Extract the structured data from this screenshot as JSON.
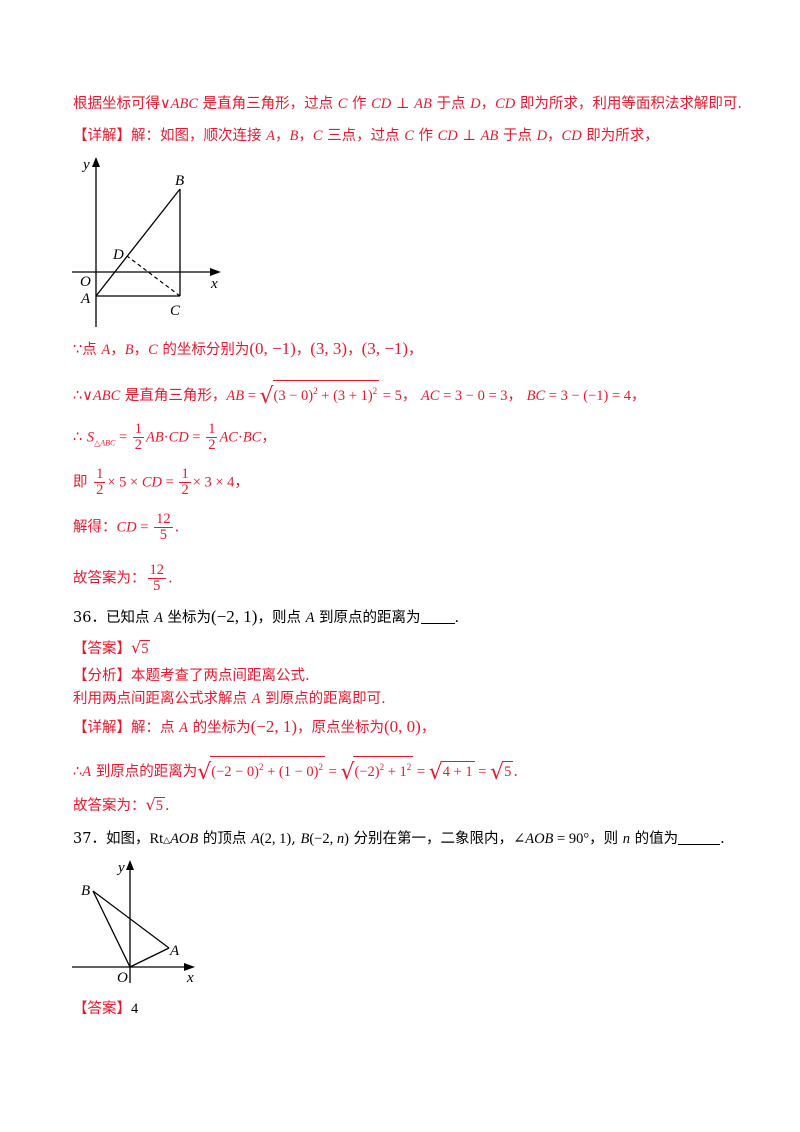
{
  "intro": {
    "hint_text": "根据坐标可得∨ABC是直角三角形，过点C作CD⊥AB于点D，CD即为所求，利用等面积法求解即可.",
    "detail_tag": "【详解】",
    "detail_text": "解：如图，顺次连接A，B，C三点，过点C作CD⊥AB于点D，CD即为所求，"
  },
  "figure1": {
    "labels": {
      "y": "y",
      "x": "x",
      "o": "O",
      "a": "A",
      "b": "B",
      "c": "C",
      "d": "D"
    }
  },
  "solution35": {
    "coords": "∵点A，B，C的坐标分别为(0,−1)，(3,3)，(3,−1)，",
    "right_triangle": "∴∨ABC是直角三角形，",
    "ab_eq": "AB = √((3−0)² + (3+1)²) = 5，",
    "ac_eq": "AC = 3 − 0 = 3，",
    "bc_eq": "BC = 3 − (−1) = 4，",
    "area_eq": "∴ S△ABC = ½AB·CD = ½AC·BC，",
    "that_is": "即 ½×5×CD = ½×3×4，",
    "solve": "解得：CD = 12/5.",
    "answer": "故答案为：12/5."
  },
  "q36": {
    "question": "36．已知点A坐标为(−2,1)，则点A到原点的距离为_____.",
    "answer_tag": "【答案】",
    "answer": "√5",
    "analysis_tag": "【分析】",
    "analysis": "本题考查了两点间距离公式.",
    "method": "利用两点间距离公式求解点A到原点的距离即可.",
    "detail_tag": "【详解】",
    "detail": "解：点A的坐标为(−2,1)，原点坐标为(0,0)，",
    "distance": "∴A到原点的距离为√((−2−0)² + (1−0)²) = √((−2)² + 1²) = √(4+1) = √5.",
    "final": "故答案为：√5."
  },
  "q37": {
    "question": "37．如图，Rt△AOB的顶点A(2,1),B(−2,n)分别在第一，二象限内，∠AOB = 90°，则n的值为______.",
    "answer_tag": "【答案】",
    "answer": "4"
  },
  "figure2": {
    "labels": {
      "y": "y",
      "x": "x",
      "o": "O",
      "a": "A",
      "b": "B"
    }
  },
  "colors": {
    "solution_red": "#e8192c",
    "text_black": "#000000"
  }
}
